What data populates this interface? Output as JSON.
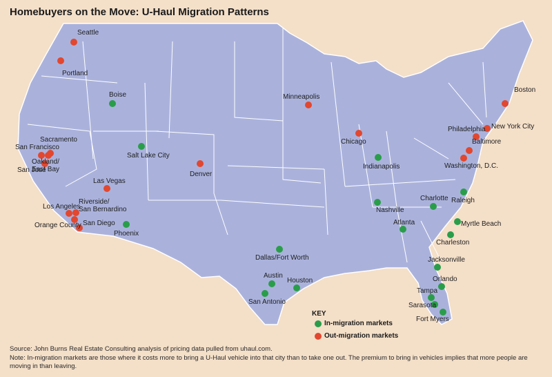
{
  "title": "Homebuyers on the Move: U-Haul Migration Patterns",
  "key": {
    "title": "KEY",
    "items": [
      {
        "label": "In-migration markets",
        "color": "#2a9d4a",
        "cities": [
          "Boise",
          "Salt Lake City",
          "Phoenix",
          "Dallas/Fort Worth",
          "Austin",
          "Houston",
          "San Antonio",
          "Indianapolis",
          "Nashville",
          "Atlanta",
          "Charlotte",
          "Raleigh",
          "Myrtle Beach",
          "Charleston",
          "Jacksonville",
          "Orlando",
          "Tampa",
          "Sarasota",
          "Fort Myers"
        ]
      },
      {
        "label": "Out-migration markets",
        "color": "#e2472f",
        "cities": [
          "Seattle",
          "Portland",
          "San Francisco",
          "Sacramento",
          "San Jose",
          "Oakland/\nEast Bay",
          "Las Vegas",
          "Los Angeles",
          "Riverside/\nSan Bernardino",
          "Orange County",
          "San Diego",
          "Denver",
          "Minneapolis",
          "Chicago",
          "New York City",
          "Philadelphia",
          "Baltimore",
          "Washington, D.C.",
          "Boston"
        ]
      }
    ]
  },
  "source": "Source: John Burns Real Estate Consulting analysis of pricing data pulled from uhaul.com.",
  "note": "Note: In-migration markets are those where it costs more to bring a U-Haul vehicle into that city than to take one out. The premium to bring in vehicles implies that more people are moving in than leaving."
}
